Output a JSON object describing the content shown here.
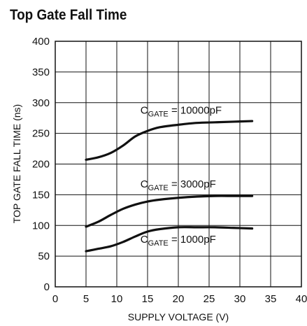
{
  "chart_data": {
    "type": "line",
    "title": "Top Gate Fall Time",
    "xlabel": "SUPPLY VOLTAGE (V)",
    "ylabel": "TOP GATE FALL TIME (ns)",
    "xlim": [
      0,
      40
    ],
    "ylim": [
      0,
      400
    ],
    "xticks": [
      0,
      5,
      10,
      15,
      20,
      25,
      30,
      35,
      40
    ],
    "yticks": [
      0,
      50,
      100,
      150,
      200,
      250,
      300,
      350,
      400
    ],
    "grid": true,
    "series": [
      {
        "label_prefix": "C",
        "label_sub": "GATE",
        "label_suffix": " = 10000pF",
        "x": [
          5,
          7,
          9,
          11,
          13,
          15,
          17,
          20,
          23,
          26,
          29,
          32
        ],
        "y": [
          207,
          211,
          218,
          230,
          245,
          254,
          260,
          264,
          267,
          268,
          269,
          270
        ]
      },
      {
        "label_prefix": "C",
        "label_sub": "GATE",
        "label_suffix": " = 3000pF",
        "x": [
          5,
          7,
          9,
          11,
          13,
          15,
          17,
          20,
          23,
          26,
          29,
          32
        ],
        "y": [
          98,
          106,
          117,
          127,
          134,
          139,
          142,
          145,
          147,
          148,
          148,
          148
        ]
      },
      {
        "label_prefix": "C",
        "label_sub": "GATE",
        "label_suffix": " = 1000pF",
        "x": [
          5,
          7,
          9,
          11,
          13,
          15,
          17,
          20,
          23,
          26,
          29,
          32
        ],
        "y": [
          58,
          62,
          66,
          73,
          82,
          90,
          94,
          97,
          97,
          97,
          96,
          95
        ]
      }
    ]
  }
}
